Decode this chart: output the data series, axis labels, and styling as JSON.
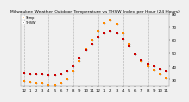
{
  "title": "Milwaukee Weather Outdoor Temperature vs THSW Index per Hour (24 Hours)",
  "background_color": "#f0f0f0",
  "plot_bg_color": "#f0f0f0",
  "grid_color": "#aaaaaa",
  "hours": [
    0,
    1,
    2,
    3,
    4,
    5,
    6,
    7,
    8,
    9,
    10,
    11,
    12,
    13,
    14,
    15,
    16,
    17,
    18,
    19,
    20,
    21,
    22,
    23
  ],
  "temp_values": [
    35,
    34,
    34,
    34,
    33,
    33,
    34,
    36,
    40,
    46,
    52,
    57,
    62,
    65,
    67,
    65,
    61,
    55,
    49,
    45,
    42,
    40,
    38,
    36
  ],
  "thsw_values": [
    29,
    28,
    27,
    27,
    26,
    26,
    27,
    30,
    36,
    44,
    53,
    60,
    67,
    73,
    75,
    72,
    65,
    57,
    49,
    44,
    40,
    37,
    34,
    31
  ],
  "temp_color": "#cc0000",
  "thsw_color": "#ff8800",
  "black_dot_color": "#111111",
  "dot_size": 2,
  "ylim": [
    25,
    80
  ],
  "yticks": [
    30,
    40,
    50,
    60,
    70,
    80
  ],
  "ytick_labels": [
    "30",
    "40",
    "50",
    "60",
    "70",
    "80"
  ],
  "xtick_positions": [
    0,
    1,
    2,
    3,
    4,
    5,
    6,
    7,
    8,
    9,
    10,
    11,
    12,
    13,
    14,
    15,
    16,
    17,
    18,
    19,
    20,
    21,
    22,
    23
  ],
  "xtick_labels": [
    "12",
    "1",
    "2",
    "3",
    "4",
    "5",
    "6",
    "7",
    "8",
    "9",
    "10",
    "11",
    "12",
    "1",
    "2",
    "3",
    "4",
    "5",
    "6",
    "7",
    "8",
    "9",
    "10",
    "11"
  ],
  "vgrid_positions": [
    0,
    4,
    8,
    12,
    16,
    20
  ],
  "title_fontsize": 3.2,
  "tick_fontsize": 2.8,
  "legend_label_temp": "Temp",
  "legend_label_thsw": "THSW",
  "legend_fontsize": 2.5,
  "legend_color_temp": "#ff8800",
  "legend_color_thsw": "#ff8800"
}
